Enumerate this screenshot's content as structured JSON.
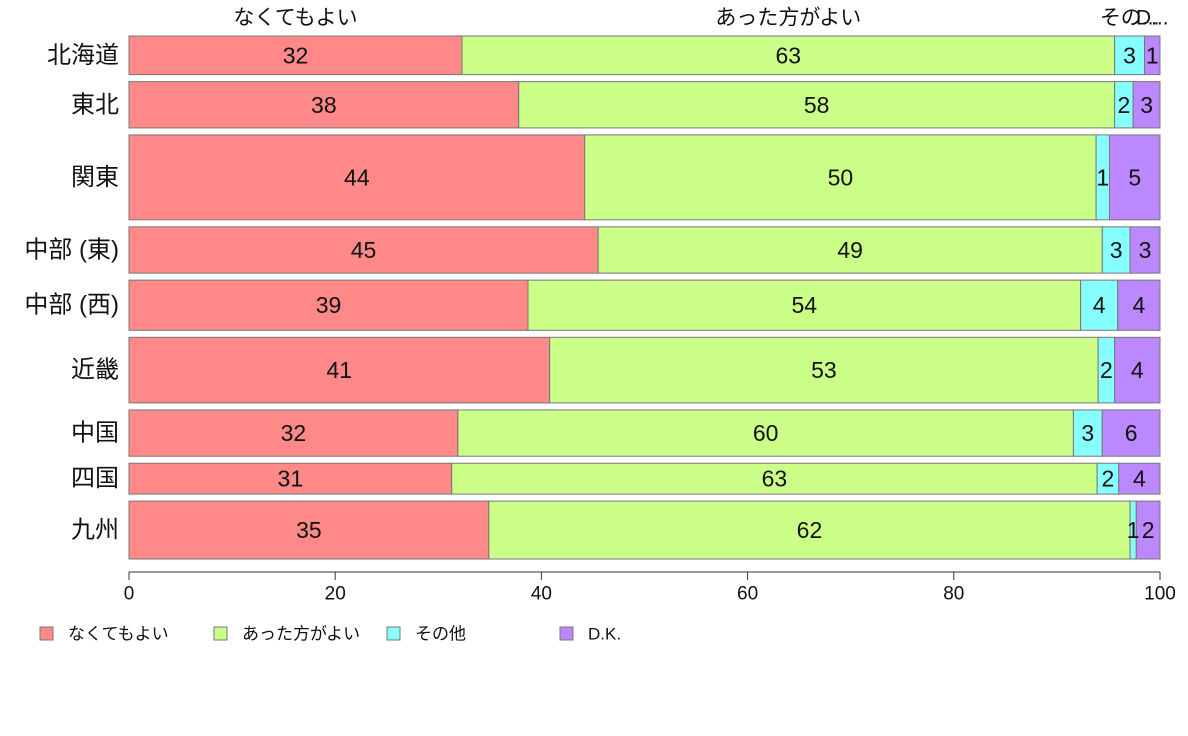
{
  "chart_data": {
    "type": "bar",
    "orientation": "horizontal",
    "stacked": true,
    "categories": [
      "北海道",
      "東北",
      "関東",
      "中部 (東)",
      "中部 (西)",
      "近畿",
      "中国",
      "四国",
      "九州"
    ],
    "relative_heights": [
      1.0,
      1.2,
      2.2,
      1.2,
      1.3,
      1.7,
      1.2,
      0.8,
      1.5
    ],
    "series": [
      {
        "name": "なくてもよい",
        "color": "#ff8888",
        "values": [
          32.3,
          37.8,
          44.2,
          45.5,
          38.7,
          40.8,
          31.9,
          31.3,
          34.9
        ],
        "labels": [
          "32",
          "38",
          "44",
          "45",
          "39",
          "41",
          "32",
          "31",
          "35"
        ]
      },
      {
        "name": "あった方がよい",
        "color": "#ccff88",
        "values": [
          63.3,
          57.8,
          49.6,
          48.9,
          53.6,
          53.2,
          59.7,
          62.6,
          62.2
        ],
        "labels": [
          "63",
          "58",
          "50",
          "49",
          "54",
          "53",
          "60",
          "63",
          "62"
        ]
      },
      {
        "name": "その他",
        "color": "#88ffff",
        "values": [
          2.9,
          1.8,
          1.3,
          2.7,
          3.6,
          1.6,
          2.8,
          2.1,
          0.6
        ],
        "labels": [
          "3",
          "2",
          "1",
          "3",
          "4",
          "2",
          "3",
          "2",
          "1"
        ]
      },
      {
        "name": "D.K.",
        "color": "#bb88ff",
        "values": [
          1.5,
          2.6,
          4.9,
          2.9,
          4.1,
          4.4,
          5.6,
          4.0,
          2.3
        ],
        "labels": [
          "1",
          "3",
          "5",
          "3",
          "4",
          "4",
          "6",
          "4",
          "2"
        ]
      }
    ],
    "top_labels": [
      "なくてもよい",
      "あった方がよい",
      "その...",
      "D..."
    ],
    "xlim": [
      0,
      100
    ],
    "x_ticks": [
      0,
      20,
      40,
      60,
      80,
      100
    ],
    "legend_position": "bottom",
    "grid": false,
    "title": "",
    "xlabel": "",
    "ylabel": ""
  }
}
